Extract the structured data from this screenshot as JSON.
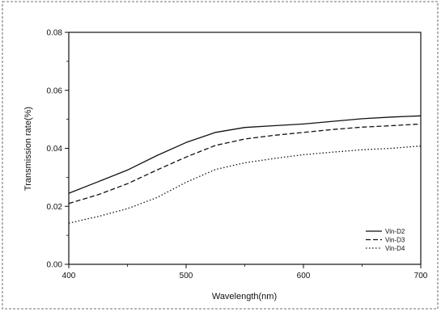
{
  "chart_data": {
    "type": "line",
    "xlabel": "Wavelength(nm)",
    "ylabel": "Transmission rate(%)",
    "xlim": [
      400,
      700
    ],
    "ylim": [
      0.0,
      0.08
    ],
    "x_ticks": [
      "400",
      "500",
      "600",
      "700"
    ],
    "y_ticks": [
      "0.00",
      "0.02",
      "0.04",
      "0.06",
      "0.08"
    ],
    "grid": false,
    "legend_position": "bottom-right",
    "series": [
      {
        "name": "Vin-D2",
        "style": "solid",
        "color": "#111111",
        "x": [
          400,
          425,
          450,
          475,
          500,
          525,
          550,
          575,
          600,
          625,
          650,
          675,
          700
        ],
        "y": [
          0.0245,
          0.0285,
          0.0325,
          0.0375,
          0.042,
          0.0455,
          0.0472,
          0.0478,
          0.0484,
          0.0493,
          0.0502,
          0.0508,
          0.0512
        ]
      },
      {
        "name": "Vin-D3",
        "style": "dashed",
        "color": "#111111",
        "x": [
          400,
          425,
          450,
          475,
          500,
          525,
          550,
          575,
          600,
          625,
          650,
          675,
          700
        ],
        "y": [
          0.021,
          0.024,
          0.0278,
          0.0325,
          0.037,
          0.041,
          0.0432,
          0.0445,
          0.0455,
          0.0465,
          0.0473,
          0.0478,
          0.0484
        ]
      },
      {
        "name": "Vin-D4",
        "style": "dotted",
        "color": "#111111",
        "x": [
          400,
          425,
          450,
          475,
          500,
          525,
          550,
          575,
          600,
          625,
          650,
          675,
          700
        ],
        "y": [
          0.0142,
          0.0165,
          0.0192,
          0.023,
          0.0283,
          0.0327,
          0.035,
          0.0365,
          0.0378,
          0.0387,
          0.0395,
          0.04,
          0.0408
        ]
      }
    ]
  }
}
